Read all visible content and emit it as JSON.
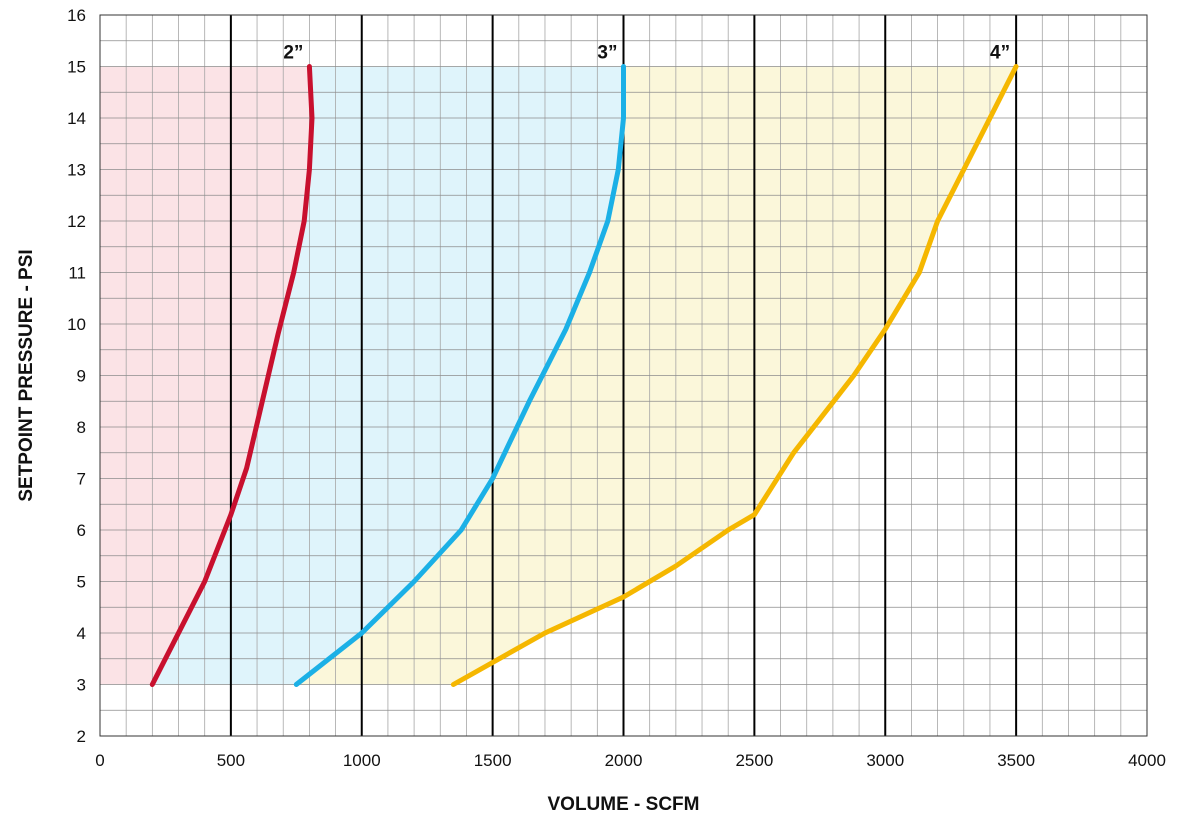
{
  "chart_data": {
    "type": "line",
    "xlabel": "VOLUME - SCFM",
    "ylabel": "SETPOINT PRESSURE - PSI",
    "xlim": [
      0,
      4000
    ],
    "ylim": [
      2,
      16
    ],
    "x_major_step": 500,
    "x_minor_step": 100,
    "y_major_step": 1,
    "y_minor_step": 0.5,
    "x_ticks": [
      "0",
      "500",
      "1000",
      "1500",
      "2000",
      "2500",
      "3000",
      "3500",
      "4000"
    ],
    "y_ticks": [
      "2",
      "3",
      "4",
      "5",
      "6",
      "7",
      "8",
      "9",
      "10",
      "11",
      "12",
      "13",
      "14",
      "15",
      "16"
    ],
    "grid": true,
    "shaded_band_y": [
      3,
      15
    ],
    "series": [
      {
        "name": "2”",
        "color": "#c8102e",
        "fill_color": "#fbe3e6",
        "x": [
          200,
          300,
          400,
          500,
          560,
          620,
          680,
          740,
          780,
          800,
          810,
          800
        ],
        "y": [
          3,
          4,
          5,
          6.3,
          7.2,
          8.5,
          9.8,
          11,
          12,
          13,
          14,
          15
        ]
      },
      {
        "name": "3”",
        "color": "#1bb0e6",
        "fill_color": "#dff4fb",
        "x": [
          750,
          1000,
          1200,
          1380,
          1500,
          1640,
          1780,
          1870,
          1940,
          1980,
          2000,
          2000
        ],
        "y": [
          3,
          4,
          5,
          6,
          7,
          8.5,
          9.9,
          11,
          12,
          13,
          14,
          15
        ]
      },
      {
        "name": "4”",
        "color": "#f5b700",
        "fill_color": "#fbf7da",
        "x": [
          1350,
          1700,
          2000,
          2200,
          2400,
          2500,
          2650,
          2880,
          3000,
          3130,
          3200,
          3350,
          3500
        ],
        "y": [
          3,
          4,
          4.7,
          5.3,
          6,
          6.3,
          7.5,
          9,
          9.9,
          11,
          12,
          13.5,
          15
        ]
      }
    ]
  }
}
